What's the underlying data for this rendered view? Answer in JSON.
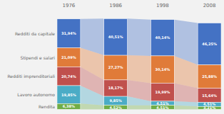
{
  "chart_data": {
    "type": "bar",
    "stacked": true,
    "data_labels": true,
    "tick_labels": false,
    "categories": [
      "1976",
      "1986",
      "1998",
      "2008"
    ],
    "ylim": [
      -2,
      110
    ],
    "series": [
      {
        "name": "Redditi da capitale",
        "color": "#4472c4",
        "values": [
          31.94,
          40.51,
          40.14,
          46.25
        ],
        "value_labels": [
          "31,94%",
          "40,51%",
          "40,14%",
          "46,25%"
        ]
      },
      {
        "name": "Stipendi e salari",
        "color": "#e07b39",
        "values": [
          21.09,
          27.27,
          30.14,
          25.88
        ],
        "value_labels": [
          "21,09%",
          "27,27%",
          "30,14%",
          "25,88%"
        ]
      },
      {
        "name": "Redditi imprenditoriali",
        "color": "#c0504d",
        "values": [
          20.74,
          18.17,
          19.99,
          15.64
        ],
        "value_labels": [
          "20,74%",
          "18,17%",
          "19,99%",
          "15,64%"
        ]
      },
      {
        "name": "Lavoro autonomo",
        "color": "#4bacc6",
        "values": [
          19.85,
          9.85,
          4.51,
          4.51
        ],
        "value_labels": [
          "19,85%",
          "9,85%",
          "4,51%",
          "4,51%"
        ]
      },
      {
        "name": "Rendita",
        "color": "#70ad47",
        "values": [
          6.38,
          4.52,
          4.51,
          3.21
        ],
        "value_labels": [
          "6,38%",
          "4,52%",
          "4,51%",
          "3,21%"
        ]
      }
    ]
  }
}
